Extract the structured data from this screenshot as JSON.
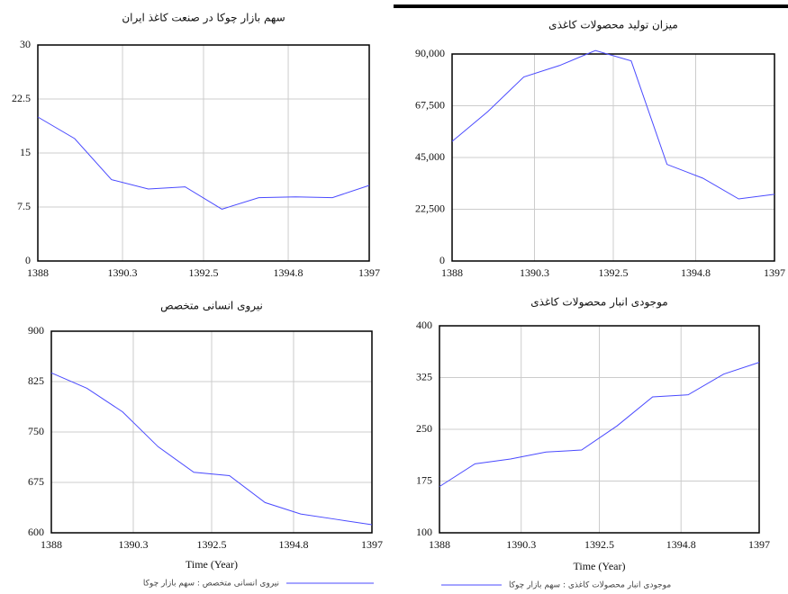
{
  "chart_data": [
    {
      "type": "line",
      "title": "سهم بازار چوکا در صنعت کاغذ ایران",
      "x": [
        1388,
        1389,
        1390,
        1391,
        1392,
        1393,
        1394,
        1395,
        1396,
        1397
      ],
      "values": [
        20,
        17,
        11.3,
        10,
        10.3,
        7.2,
        8.8,
        8.9,
        8.8,
        10.5
      ],
      "color": "#4a4aff",
      "xlim": [
        1388,
        1397
      ],
      "xticks": [
        1388,
        1390.3,
        1392.5,
        1394.8,
        1397
      ],
      "ylim": [
        0,
        30
      ],
      "yticks": [
        0,
        7.5,
        15,
        22.5,
        30
      ],
      "grid": true
    },
    {
      "type": "line",
      "title": "میزان تولید محصولات کاغذی",
      "x": [
        1388,
        1389,
        1390,
        1391,
        1392,
        1393,
        1394,
        1395,
        1396,
        1397
      ],
      "values": [
        52000,
        65000,
        80000,
        85000,
        91500,
        87000,
        42000,
        36000,
        27000,
        29000
      ],
      "color": "#4a4aff",
      "xlim": [
        1388,
        1397
      ],
      "xticks": [
        1388,
        1390.3,
        1392.5,
        1394.8,
        1397
      ],
      "ylim": [
        0,
        90000
      ],
      "yticks": [
        0,
        {
          "value": 22500,
          "label": "22,500"
        },
        {
          "value": 45000,
          "label": "45,000"
        },
        {
          "value": 67500,
          "label": "67,500"
        },
        {
          "value": 90000,
          "label": "90,000"
        }
      ],
      "grid": true
    },
    {
      "type": "line",
      "title": "نیروی انسانی متخصص",
      "xlabel": "Time (Year)",
      "x": [
        1388,
        1389,
        1390,
        1391,
        1392,
        1393,
        1394,
        1395,
        1396,
        1397
      ],
      "series": [
        {
          "name": "نیروی انسانی متخصص : سهم بازار چوکا",
          "color": "#4a4aff",
          "values": [
            838,
            815,
            780,
            728,
            690,
            685,
            645,
            628,
            620,
            612
          ]
        }
      ],
      "xlim": [
        1388,
        1397
      ],
      "xticks": [
        1388,
        1390.3,
        1392.5,
        1394.8,
        1397
      ],
      "ylim": [
        600,
        900
      ],
      "yticks": [
        600,
        675,
        750,
        825,
        900
      ],
      "grid": true
    },
    {
      "type": "line",
      "title": "موجودی انبار محصولات کاغذی",
      "xlabel": "Time (Year)",
      "x": [
        1388,
        1389,
        1390,
        1391,
        1392,
        1393,
        1394,
        1395,
        1396,
        1397
      ],
      "series": [
        {
          "name": "موجودی انبار محصولات کاغذی : سهم بازار چوکا",
          "color": "#4a4aff",
          "values": [
            167,
            200,
            207,
            217,
            220,
            255,
            297,
            300,
            330,
            347
          ]
        }
      ],
      "xlim": [
        1388,
        1397
      ],
      "xticks": [
        1388,
        1390.3,
        1392.5,
        1394.8,
        1397
      ],
      "ylim": [
        100,
        400
      ],
      "yticks": [
        100,
        175,
        250,
        325,
        400
      ],
      "grid": true
    }
  ]
}
